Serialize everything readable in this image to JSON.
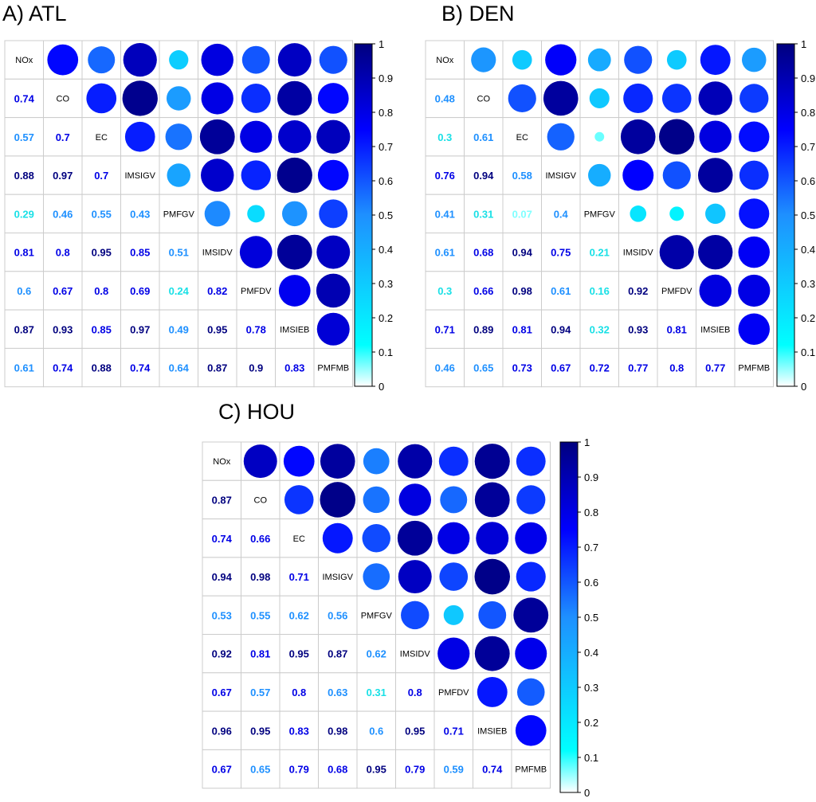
{
  "colorscale": {
    "stops": [
      "#ffffff",
      "#00ffff",
      "#1e90ff",
      "#0000ff",
      "#00007f"
    ],
    "label_colors": {
      "vlow": "#7fffff",
      "low": "#19e0e6",
      "mid": "#1e90ff",
      "high": "#0000e6",
      "top": "#00007f"
    }
  },
  "chart_data": [
    {
      "type": "heatmap",
      "title": "A) ATL",
      "variables": [
        "NOx",
        "CO",
        "EC",
        "IMSIGV",
        "PMFGV",
        "IMSIDV",
        "PMFDV",
        "IMSIEB",
        "PMFMB"
      ],
      "lower_labels": [
        [],
        [
          "0.74"
        ],
        [
          "0.57",
          "0.7"
        ],
        [
          "0.88",
          "0.97",
          "0.7"
        ],
        [
          "0.29",
          "0.46",
          "0.55",
          "0.43"
        ],
        [
          "0.81",
          "0.8",
          "0.95",
          "0.85",
          "0.51"
        ],
        [
          "0.6",
          "0.67",
          "0.8",
          "0.69",
          "0.24",
          "0.82"
        ],
        [
          "0.87",
          "0.93",
          "0.85",
          "0.97",
          "0.49",
          "0.95",
          "0.78"
        ],
        [
          "0.61",
          "0.74",
          "0.88",
          "0.74",
          "0.64",
          "0.87",
          "0.9",
          "0.83"
        ]
      ],
      "colorbar": {
        "min": 0,
        "max": 1,
        "ticks": [
          "0",
          "0.1",
          "0.2",
          "0.3",
          "0.4",
          "0.5",
          "0.6",
          "0.7",
          "0.8",
          "0.9",
          "1"
        ]
      }
    },
    {
      "type": "heatmap",
      "title": "B) DEN",
      "variables": [
        "NOx",
        "CO",
        "EC",
        "IMSIGV",
        "PMFGV",
        "IMSIDV",
        "PMFDV",
        "IMSIEB",
        "PMFMB"
      ],
      "lower_labels": [
        [],
        [
          "0.48"
        ],
        [
          "0.3",
          "0.61"
        ],
        [
          "0.76",
          "0.94",
          "0.58"
        ],
        [
          "0.41",
          "0.31",
          "0.07",
          "0.4"
        ],
        [
          "0.61",
          "0.68",
          "0.94",
          "0.75",
          "0.21"
        ],
        [
          "0.3",
          "0.66",
          "0.98",
          "0.61",
          "0.16",
          "0.92"
        ],
        [
          "0.71",
          "0.89",
          "0.81",
          "0.94",
          "0.32",
          "0.93",
          "0.81"
        ],
        [
          "0.46",
          "0.65",
          "0.73",
          "0.67",
          "0.72",
          "0.77",
          "0.8",
          "0.77"
        ]
      ],
      "colorbar": {
        "min": 0,
        "max": 1,
        "ticks": [
          "0",
          "0.1",
          "0.2",
          "0.3",
          "0.4",
          "0.5",
          "0.6",
          "0.7",
          "0.8",
          "0.9",
          "1"
        ]
      }
    },
    {
      "type": "heatmap",
      "title": "C) HOU",
      "variables": [
        "NOx",
        "CO",
        "EC",
        "IMSIGV",
        "PMFGV",
        "IMSIDV",
        "PMFDV",
        "IMSIEB",
        "PMFMB"
      ],
      "lower_labels": [
        [],
        [
          "0.87"
        ],
        [
          "0.74",
          "0.66"
        ],
        [
          "0.94",
          "0.98",
          "0.71"
        ],
        [
          "0.53",
          "0.55",
          "0.62",
          "0.56"
        ],
        [
          "0.92",
          "0.81",
          "0.95",
          "0.87",
          "0.62"
        ],
        [
          "0.67",
          "0.57",
          "0.8",
          "0.63",
          "0.31",
          "0.8"
        ],
        [
          "0.96",
          "0.95",
          "0.83",
          "0.98",
          "0.6",
          "0.95",
          "0.71"
        ],
        [
          "0.67",
          "0.65",
          "0.79",
          "0.68",
          "0.95",
          "0.79",
          "0.59",
          "0.74"
        ]
      ],
      "colorbar": {
        "min": 0,
        "max": 1,
        "ticks": [
          "0",
          "0.1",
          "0.2",
          "0.3",
          "0.4",
          "0.5",
          "0.6",
          "0.7",
          "0.8",
          "0.9",
          "1"
        ]
      }
    }
  ]
}
